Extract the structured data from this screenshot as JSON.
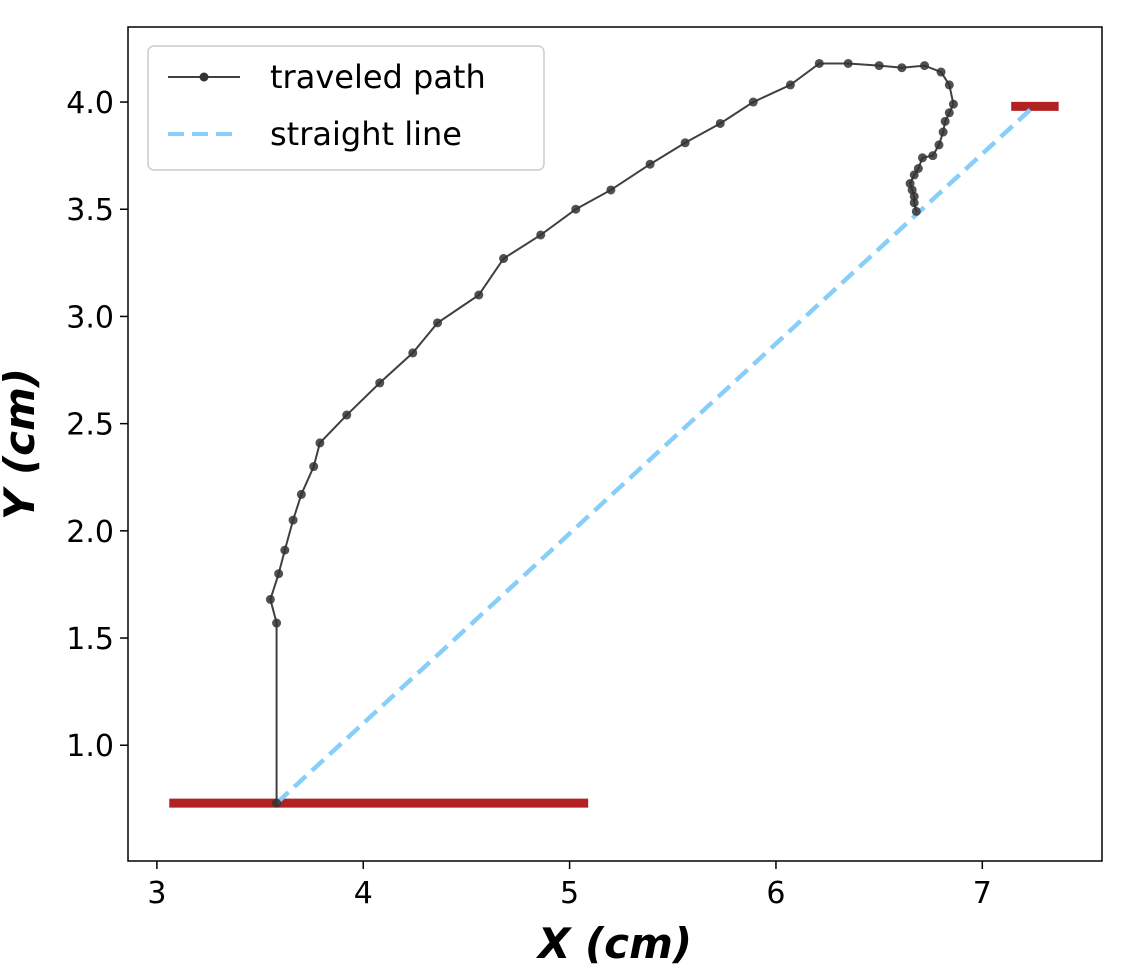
{
  "chart_data": {
    "type": "line",
    "xlabel": "X (cm)",
    "ylabel": "Y (cm)",
    "xlim": [
      2.86,
      7.58
    ],
    "ylim": [
      0.46,
      4.35
    ],
    "xticks": [
      3,
      4,
      5,
      6,
      7
    ],
    "yticks": [
      1.0,
      1.5,
      2.0,
      2.5,
      3.0,
      3.5,
      4.0
    ],
    "grid": false,
    "legend_position": "upper-left",
    "series": [
      {
        "name": "traveled path",
        "style": "solid-with-markers",
        "color": "#404040",
        "points": [
          [
            3.58,
            0.73
          ],
          [
            3.58,
            1.57
          ],
          [
            3.55,
            1.68
          ],
          [
            3.59,
            1.8
          ],
          [
            3.62,
            1.91
          ],
          [
            3.66,
            2.05
          ],
          [
            3.7,
            2.17
          ],
          [
            3.76,
            2.3
          ],
          [
            3.79,
            2.41
          ],
          [
            3.92,
            2.54
          ],
          [
            4.08,
            2.69
          ],
          [
            4.24,
            2.83
          ],
          [
            4.36,
            2.97
          ],
          [
            4.56,
            3.1
          ],
          [
            4.68,
            3.27
          ],
          [
            4.86,
            3.38
          ],
          [
            5.03,
            3.5
          ],
          [
            5.2,
            3.59
          ],
          [
            5.39,
            3.71
          ],
          [
            5.56,
            3.81
          ],
          [
            5.73,
            3.9
          ],
          [
            5.89,
            4.0
          ],
          [
            6.07,
            4.08
          ],
          [
            6.21,
            4.18
          ],
          [
            6.35,
            4.18
          ],
          [
            6.5,
            4.17
          ],
          [
            6.61,
            4.16
          ],
          [
            6.72,
            4.17
          ],
          [
            6.8,
            4.14
          ],
          [
            6.84,
            4.08
          ],
          [
            6.86,
            3.99
          ],
          [
            6.84,
            3.95
          ],
          [
            6.82,
            3.91
          ],
          [
            6.81,
            3.86
          ],
          [
            6.79,
            3.8
          ],
          [
            6.76,
            3.75
          ],
          [
            6.71,
            3.74
          ],
          [
            6.69,
            3.69
          ],
          [
            6.67,
            3.66
          ],
          [
            6.65,
            3.62
          ],
          [
            6.66,
            3.59
          ],
          [
            6.67,
            3.56
          ],
          [
            6.67,
            3.53
          ],
          [
            6.68,
            3.49
          ]
        ]
      },
      {
        "name": "straight line",
        "style": "dashed",
        "color": "#87cefa",
        "points": [
          [
            3.58,
            0.73
          ],
          [
            7.25,
            3.98
          ]
        ]
      }
    ],
    "markers": [
      {
        "type": "bar",
        "color": "#b22222",
        "x": [
          3.06,
          5.09
        ],
        "y": 0.73
      },
      {
        "type": "bar",
        "color": "#b22222",
        "x": [
          7.14,
          7.37
        ],
        "y": 3.98
      }
    ]
  }
}
